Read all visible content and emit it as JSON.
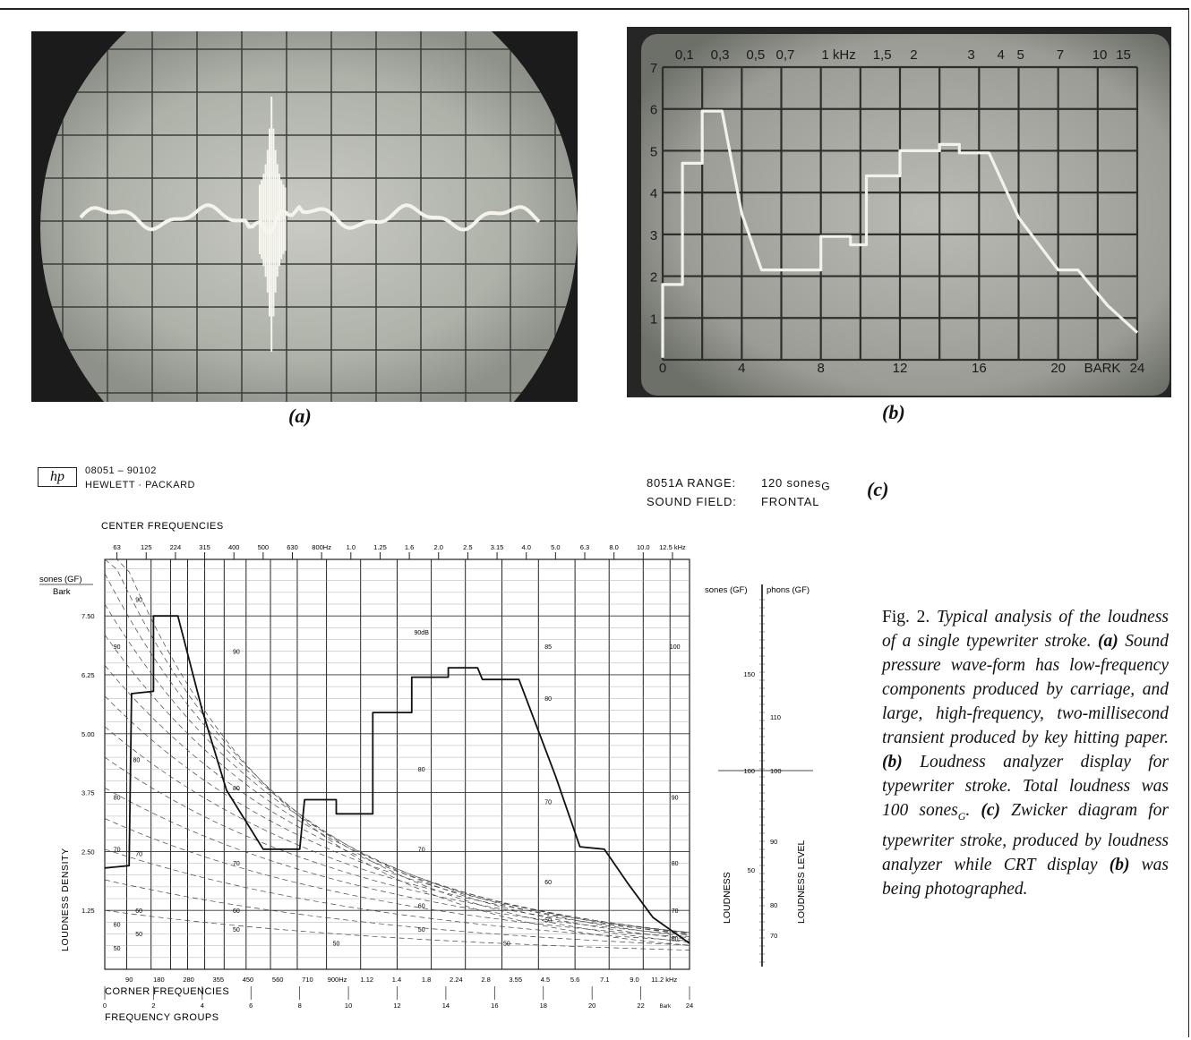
{
  "caption_a": "(a)",
  "caption_b": "(b)",
  "caption_c": "(c)",
  "hp": {
    "logo": "hp",
    "part_number": "08051 – 90102",
    "company": "HEWLETT · PACKARD"
  },
  "meta": {
    "range_label": "8051A RANGE:",
    "range_value": "120 sones",
    "range_sub": "G",
    "field_label": "SOUND FIELD:",
    "field_value": "FRONTAL"
  },
  "display_b": {
    "top_ticks": [
      "0,1",
      "0,3",
      "0,5",
      "0,7",
      "1 kHz",
      "1,5",
      "2",
      "3",
      "4",
      "5",
      "7",
      "10",
      "15"
    ],
    "left_ticks": [
      "7",
      "6",
      "5",
      "4",
      "3",
      "2",
      "1"
    ],
    "bottom_ticks": [
      "0",
      "4",
      "8",
      "12",
      "16",
      "20",
      "BARK",
      "24"
    ]
  },
  "diagram": {
    "center_title": "CENTER FREQUENCIES",
    "center_freqs": [
      "63",
      "125",
      "224",
      "315",
      "400",
      "500",
      "630",
      "800Hz",
      "1.0",
      "1.25",
      "1.6",
      "2.0",
      "2.5",
      "3.15",
      "4.0",
      "5.0",
      "6.3",
      "8.0",
      "10.0",
      "12.5 kHz"
    ],
    "y_unit_top": "sones (GF)",
    "y_unit_bottom": "Bark",
    "y_ticks": [
      "7.50",
      "6.25",
      "5.00",
      "3.75",
      "2.50",
      "1.25"
    ],
    "y_axis_label": "LOUDNESS DENSITY",
    "corner_freqs": [
      "90",
      "180",
      "280",
      "355",
      "450",
      "560",
      "710",
      "900Hz",
      "1.12",
      "1.4",
      "1.8",
      "2.24",
      "2.8",
      "3.55",
      "4.5",
      "5.6",
      "7.1",
      "9.0",
      "11.2 kHz"
    ],
    "corner_title": "CORNER FREQUENCIES",
    "group_ticks": [
      "0",
      "2",
      "4",
      "6",
      "8",
      "10",
      "12",
      "14",
      "16",
      "18",
      "20",
      "22",
      "Bark",
      "24"
    ],
    "group_title": "FREQUENCY GROUPS",
    "db_labels": [
      "90",
      "90",
      "90",
      "90dB",
      "85",
      "80",
      "80",
      "80",
      "80",
      "80",
      "90",
      "100",
      "70",
      "70",
      "70",
      "70",
      "70",
      "80",
      "60",
      "60",
      "60",
      "60",
      "60",
      "70",
      "50",
      "50",
      "50",
      "50",
      "50",
      "60",
      "50",
      "50"
    ]
  },
  "scale": {
    "sones_label": "sones (GF)",
    "phons_label": "phons (GF)",
    "sones_ticks": [
      "150",
      "100",
      "50"
    ],
    "phons_ticks": [
      "110",
      "100",
      "90",
      "80",
      "70"
    ],
    "loudness_label": "LOUDNESS",
    "level_label": "LOUDNESS LEVEL"
  },
  "figure_caption": {
    "lead": "Fig. 2.",
    "t1": "Typical analysis of the loudness of a single typewriter stroke.",
    "a": "(a)",
    "t2": "Sound pressure wave-form has low-frequency components produced by carriage, and large, high-frequency, two-millisecond transient produced by key hitting paper.",
    "b": "(b)",
    "t3": "Loudness analyzer display for typewriter stroke. Total loudness was 100 sones",
    "t3_sub": "G",
    "t3_end": ".",
    "c": "(c)",
    "t4": "Zwicker diagram for typewriter stroke, produced by loudness analyzer while CRT display",
    "b2": "(b)",
    "t5": "was being photographed."
  }
}
